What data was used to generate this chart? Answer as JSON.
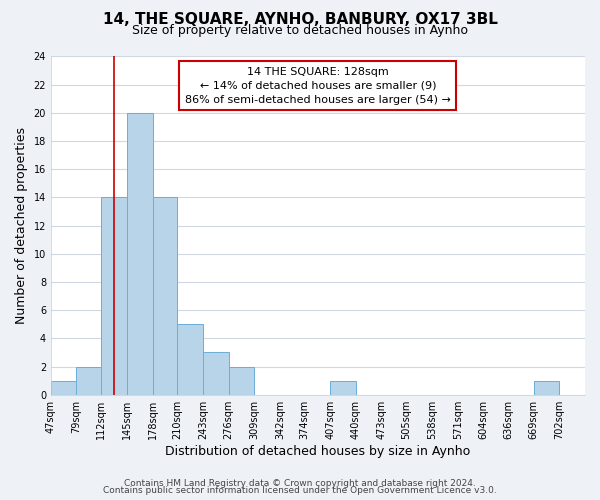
{
  "title": "14, THE SQUARE, AYNHO, BANBURY, OX17 3BL",
  "subtitle": "Size of property relative to detached houses in Aynho",
  "xlabel": "Distribution of detached houses by size in Aynho",
  "ylabel": "Number of detached properties",
  "bin_edges": [
    47,
    79,
    112,
    145,
    178,
    210,
    243,
    276,
    309,
    342,
    374,
    407,
    440,
    473,
    505,
    538,
    571,
    604,
    636,
    669,
    702,
    735
  ],
  "bar_heights": [
    1,
    2,
    14,
    20,
    14,
    5,
    3,
    2,
    0,
    0,
    0,
    1,
    0,
    0,
    0,
    0,
    0,
    0,
    0,
    1,
    0
  ],
  "bar_color": "#b8d4e8",
  "bar_edge_color": "#6aaed6",
  "property_size": 128,
  "vline_color": "#cc0000",
  "annotation_text": "14 THE SQUARE: 128sqm\n← 14% of detached houses are smaller (9)\n86% of semi-detached houses are larger (54) →",
  "annotation_box_color": "#ffffff",
  "annotation_box_edgecolor": "#cc0000",
  "ylim": [
    0,
    24
  ],
  "yticks": [
    0,
    2,
    4,
    6,
    8,
    10,
    12,
    14,
    16,
    18,
    20,
    22,
    24
  ],
  "tick_labels": [
    "47sqm",
    "79sqm",
    "112sqm",
    "145sqm",
    "178sqm",
    "210sqm",
    "243sqm",
    "276sqm",
    "309sqm",
    "342sqm",
    "374sqm",
    "407sqm",
    "440sqm",
    "473sqm",
    "505sqm",
    "538sqm",
    "571sqm",
    "604sqm",
    "636sqm",
    "669sqm",
    "702sqm"
  ],
  "footer_line1": "Contains HM Land Registry data © Crown copyright and database right 2024.",
  "footer_line2": "Contains public sector information licensed under the Open Government Licence v3.0.",
  "title_fontsize": 11,
  "subtitle_fontsize": 9,
  "axis_label_fontsize": 9,
  "tick_fontsize": 7,
  "footer_fontsize": 6.5,
  "background_color": "#eef2f7",
  "plot_background_color": "#ffffff",
  "grid_color": "#d0d8e4"
}
